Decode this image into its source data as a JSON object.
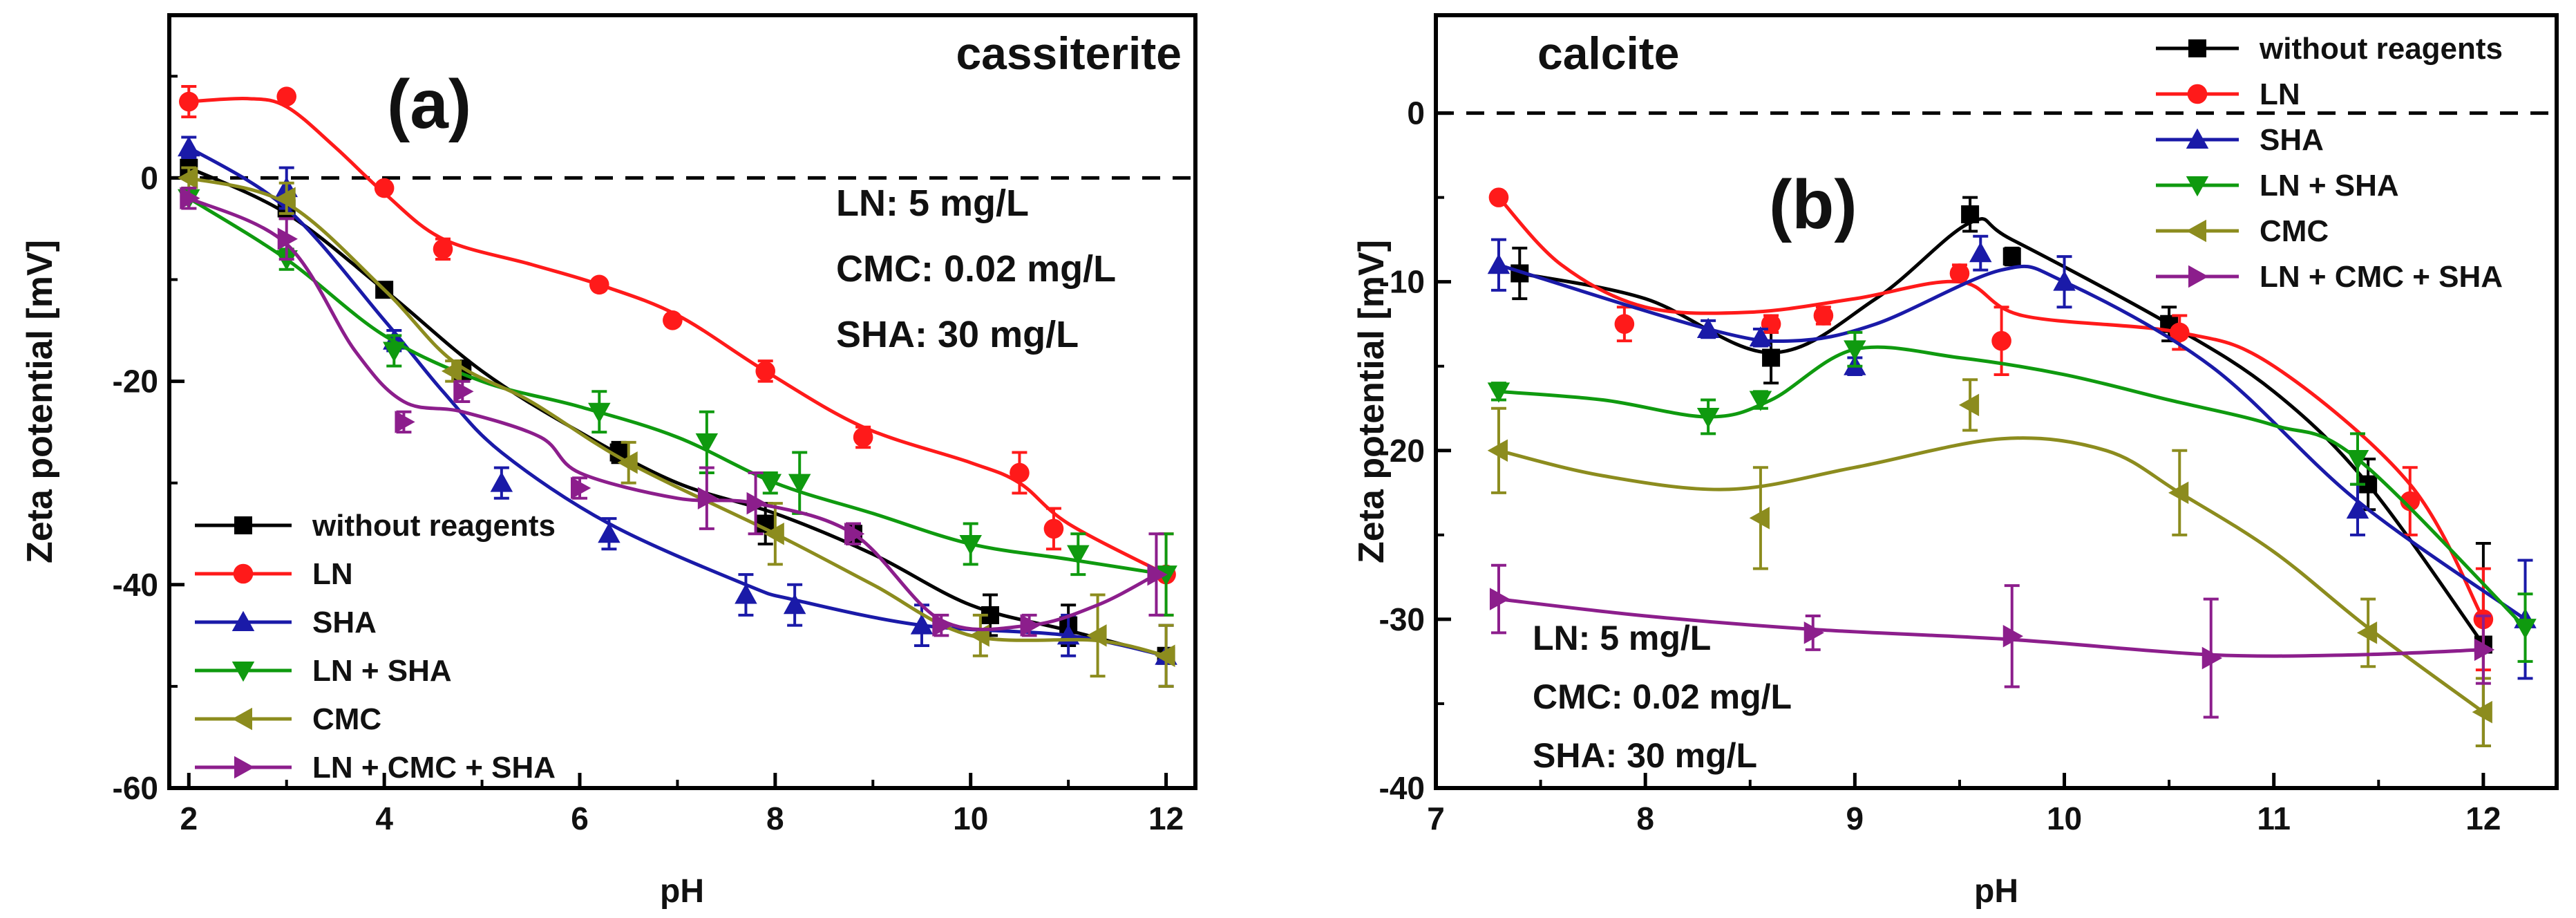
{
  "colors": {
    "without reagents": "#000000",
    "LN": "#ff1a1a",
    "SHA": "#1a1aa8",
    "LN + SHA": "#0f9a0f",
    "CMC": "#8c8c1e",
    "LN + CMC + SHA": "#8c1e8c"
  },
  "chart_data": [
    {
      "type": "line",
      "panel": "(a)",
      "title": "cassiterite",
      "xlabel": "pH",
      "ylabel": "Zeta potential [mV]",
      "xlim": [
        1.8,
        12.3
      ],
      "ylim": [
        -60,
        16
      ],
      "xticks": [
        2,
        4,
        6,
        8,
        10,
        12
      ],
      "yticks": [
        -60,
        -40,
        -20,
        0
      ],
      "minor_xticks": [
        3,
        5,
        7,
        9,
        11
      ],
      "minor_yticks": [
        -50,
        -30,
        -10,
        10
      ],
      "reference_line": 0,
      "annotations": [
        "LN: 5 mg/L",
        "CMC: 0.02 mg/L",
        "SHA: 30 mg/L"
      ],
      "legend_position": "bottom-left",
      "series": [
        {
          "name": "without reagents",
          "marker": "square",
          "x": [
            2,
            3,
            4,
            4.8,
            6.4,
            7.9,
            8.8,
            10.2,
            11.0,
            12.0
          ],
          "y": [
            1,
            -3,
            -11,
            -19,
            -27,
            -34,
            -35,
            -43,
            -44,
            -47
          ],
          "err": [
            1,
            1,
            0.6,
            1,
            1,
            2,
            1,
            2,
            2,
            3
          ],
          "curve": [
            [
              2,
              1
            ],
            [
              3,
              -3.5
            ],
            [
              4,
              -11
            ],
            [
              5,
              -19
            ],
            [
              6,
              -25
            ],
            [
              7,
              -30
            ],
            [
              8,
              -33
            ],
            [
              9,
              -37
            ],
            [
              10,
              -42
            ],
            [
              11,
              -44.5
            ],
            [
              12,
              -47
            ]
          ]
        },
        {
          "name": "LN",
          "marker": "circle",
          "x": [
            2,
            3,
            4,
            4.6,
            6.2,
            6.95,
            7.9,
            8.9,
            10.5,
            10.85,
            12.0
          ],
          "y": [
            7.5,
            8,
            -1,
            -7,
            -10.5,
            -14,
            -19,
            -25.5,
            -29,
            -34.5,
            -39
          ],
          "err": [
            1.5,
            0.5,
            0.5,
            1,
            0.5,
            0.5,
            1,
            1,
            2,
            2,
            4
          ],
          "curve": [
            [
              2,
              7.5
            ],
            [
              2.6,
              7.8
            ],
            [
              3,
              7
            ],
            [
              3.5,
              3
            ],
            [
              4,
              -1.5
            ],
            [
              4.6,
              -6
            ],
            [
              5.5,
              -8.5
            ],
            [
              6.2,
              -10.5
            ],
            [
              7,
              -13.5
            ],
            [
              7.9,
              -19
            ],
            [
              8.9,
              -24.5
            ],
            [
              10,
              -28
            ],
            [
              10.5,
              -30
            ],
            [
              11,
              -34
            ],
            [
              12,
              -39
            ]
          ]
        },
        {
          "name": "SHA",
          "marker": "triangle-up",
          "x": [
            2,
            3,
            4.1,
            5.2,
            6.3,
            7.7,
            8.2,
            9.5,
            11.0,
            12.0
          ],
          "y": [
            3,
            -1,
            -16,
            -30,
            -35,
            -41,
            -42,
            -44,
            -45,
            -47
          ],
          "err": [
            1,
            2,
            1,
            1.5,
            1.5,
            2,
            2,
            2,
            2,
            3
          ],
          "curve": [
            [
              2,
              3
            ],
            [
              3,
              -3
            ],
            [
              4,
              -14
            ],
            [
              4.6,
              -21
            ],
            [
              5.2,
              -27
            ],
            [
              6.3,
              -34
            ],
            [
              7.7,
              -40
            ],
            [
              8.2,
              -41.5
            ],
            [
              9.5,
              -44
            ],
            [
              11,
              -45
            ],
            [
              12,
              -47
            ]
          ]
        },
        {
          "name": "LN + SHA",
          "marker": "triangle-down",
          "x": [
            2,
            3,
            4.1,
            6.2,
            7.3,
            7.95,
            8.25,
            10.0,
            11.1,
            12.0
          ],
          "y": [
            -2,
            -8,
            -17,
            -23,
            -26,
            -30,
            -30,
            -36,
            -37,
            -39
          ],
          "err": [
            1,
            1,
            1.5,
            2,
            3,
            1,
            3,
            2,
            2,
            4
          ],
          "curve": [
            [
              2,
              -2
            ],
            [
              3,
              -8
            ],
            [
              4,
              -15.5
            ],
            [
              5,
              -20
            ],
            [
              6,
              -22.5
            ],
            [
              7,
              -25.5
            ],
            [
              8,
              -30
            ],
            [
              9,
              -33
            ],
            [
              10,
              -36
            ],
            [
              11,
              -37.5
            ],
            [
              12,
              -39
            ]
          ]
        },
        {
          "name": "CMC",
          "marker": "triangle-left",
          "x": [
            2,
            3,
            4.7,
            6.5,
            8.0,
            10.1,
            11.3,
            12.0
          ],
          "y": [
            0,
            -2,
            -19,
            -28,
            -35,
            -45,
            -45,
            -47
          ],
          "err": [
            1,
            1.5,
            1,
            2,
            3,
            2,
            4,
            3
          ],
          "curve": [
            [
              2,
              0
            ],
            [
              3,
              -2.5
            ],
            [
              4,
              -11
            ],
            [
              4.7,
              -18
            ],
            [
              5.5,
              -22
            ],
            [
              6.5,
              -28
            ],
            [
              8,
              -35
            ],
            [
              9,
              -40
            ],
            [
              10,
              -45
            ],
            [
              11.3,
              -45.5
            ],
            [
              12,
              -47
            ]
          ]
        },
        {
          "name": "LN + CMC + SHA",
          "marker": "triangle-right",
          "x": [
            2,
            3,
            4.2,
            4.8,
            6.0,
            7.3,
            7.8,
            8.8,
            9.7,
            10.6,
            11.9
          ],
          "y": [
            -2,
            -6,
            -24,
            -21,
            -30.5,
            -31.5,
            -32,
            -35,
            -44,
            -44,
            -39
          ],
          "err": [
            1,
            2,
            1,
            1,
            1,
            3,
            3,
            1,
            1,
            1,
            4
          ],
          "curve": [
            [
              2,
              -2
            ],
            [
              3,
              -6.5
            ],
            [
              3.7,
              -17
            ],
            [
              4.2,
              -22
            ],
            [
              4.8,
              -23
            ],
            [
              5.6,
              -25.5
            ],
            [
              6,
              -29
            ],
            [
              7,
              -31.5
            ],
            [
              7.8,
              -32
            ],
            [
              8.8,
              -35
            ],
            [
              9.7,
              -43.5
            ],
            [
              10.6,
              -44
            ],
            [
              11.3,
              -42
            ],
            [
              11.9,
              -39
            ]
          ]
        }
      ]
    },
    {
      "type": "line",
      "panel": "(b)",
      "title": "calcite",
      "xlabel": "pH",
      "ylabel": "Zeta potential [mV]",
      "xlim": [
        7,
        12.35
      ],
      "ylim": [
        -40,
        5.8
      ],
      "xticks": [
        7,
        8,
        9,
        10,
        11,
        12
      ],
      "yticks": [
        -40,
        -30,
        -20,
        -10,
        0
      ],
      "minor_xticks": [
        7.5,
        8.5,
        9.5,
        10.5,
        11.5
      ],
      "minor_yticks": [
        -35,
        -25,
        -15,
        -5
      ],
      "reference_line": 0,
      "annotations": [
        "LN: 5 mg/L",
        "CMC: 0.02 mg/L",
        "SHA: 30 mg/L"
      ],
      "legend_position": "top-right",
      "series": [
        {
          "name": "without reagents",
          "marker": "square",
          "x": [
            7.4,
            8.6,
            9.55,
            9.75,
            10.5,
            11.45,
            12.0
          ],
          "y": [
            -9.5,
            -14.5,
            -6,
            -8.5,
            -12.5,
            -22,
            -31.5
          ],
          "err": [
            1.5,
            1.5,
            1,
            0.5,
            1,
            1.5,
            6
          ],
          "curve": [
            [
              7.4,
              -9.5
            ],
            [
              8,
              -11
            ],
            [
              8.6,
              -14.2
            ],
            [
              9.1,
              -11
            ],
            [
              9.55,
              -6.5
            ],
            [
              9.75,
              -7.5
            ],
            [
              10.5,
              -12.5
            ],
            [
              11,
              -16.5
            ],
            [
              11.45,
              -22
            ],
            [
              12,
              -31.5
            ]
          ]
        },
        {
          "name": "LN",
          "marker": "circle",
          "x": [
            7.3,
            7.9,
            8.6,
            8.85,
            9.5,
            9.7,
            10.55,
            11.65,
            12.0
          ],
          "y": [
            -5,
            -12.5,
            -12.5,
            -12,
            -9.5,
            -13.5,
            -13,
            -23,
            -30
          ],
          "err": [
            0.3,
            1,
            0.5,
            0.5,
            0.5,
            2,
            1,
            2,
            3
          ],
          "curve": [
            [
              7.3,
              -5
            ],
            [
              7.6,
              -9
            ],
            [
              8,
              -11.5
            ],
            [
              8.5,
              -11.8
            ],
            [
              9,
              -11
            ],
            [
              9.5,
              -10
            ],
            [
              9.8,
              -12
            ],
            [
              10.55,
              -13
            ],
            [
              11,
              -15
            ],
            [
              11.65,
              -22
            ],
            [
              12,
              -30
            ]
          ]
        },
        {
          "name": "SHA",
          "marker": "triangle-up",
          "x": [
            7.3,
            8.3,
            8.55,
            9.0,
            9.6,
            10.0,
            11.4,
            12.2
          ],
          "y": [
            -9,
            -12.8,
            -13.3,
            -15,
            -8.3,
            -10,
            -23.5,
            -30
          ],
          "err": [
            1.5,
            0.5,
            0.5,
            0.5,
            1,
            1.5,
            1.5,
            3.5
          ],
          "curve": [
            [
              7.3,
              -9
            ],
            [
              8.3,
              -12.8
            ],
            [
              8.7,
              -13.5
            ],
            [
              9.1,
              -12.5
            ],
            [
              9.7,
              -9.3
            ],
            [
              10,
              -10
            ],
            [
              10.7,
              -15
            ],
            [
              11.4,
              -23
            ],
            [
              12.2,
              -30
            ]
          ]
        },
        {
          "name": "LN + SHA",
          "marker": "triangle-down",
          "x": [
            7.3,
            8.3,
            8.55,
            9.0,
            11.4,
            12.2
          ],
          "y": [
            -16.5,
            -18,
            -17,
            -14,
            -20.5,
            -30.5
          ],
          "err": [
            0.5,
            1,
            0.5,
            1,
            1.5,
            2
          ],
          "curve": [
            [
              7.3,
              -16.5
            ],
            [
              7.8,
              -17
            ],
            [
              8.3,
              -18
            ],
            [
              8.6,
              -17
            ],
            [
              9,
              -14
            ],
            [
              9.5,
              -14.5
            ],
            [
              10,
              -15.5
            ],
            [
              10.5,
              -17
            ],
            [
              11,
              -18.5
            ],
            [
              11.4,
              -20.5
            ],
            [
              12.2,
              -30.5
            ]
          ]
        },
        {
          "name": "CMC",
          "marker": "triangle-left",
          "x": [
            7.3,
            8.55,
            9.55,
            10.55,
            11.45,
            12.0
          ],
          "y": [
            -20,
            -24,
            -17.3,
            -22.5,
            -30.8,
            -35.5
          ],
          "err": [
            2.5,
            3,
            1.5,
            2.5,
            2,
            2
          ],
          "curve": [
            [
              7.3,
              -20
            ],
            [
              7.8,
              -21.5
            ],
            [
              8.4,
              -22.3
            ],
            [
              9,
              -21
            ],
            [
              9.7,
              -19.3
            ],
            [
              10.2,
              -20
            ],
            [
              10.55,
              -22.5
            ],
            [
              11,
              -26
            ],
            [
              11.45,
              -30.5
            ],
            [
              12,
              -35.5
            ]
          ]
        },
        {
          "name": "LN + CMC + SHA",
          "marker": "triangle-right",
          "x": [
            7.3,
            8.8,
            9.75,
            10.7,
            12.0
          ],
          "y": [
            -28.8,
            -30.8,
            -31,
            -32.3,
            -31.8
          ],
          "err": [
            2,
            1,
            3,
            3.5,
            2
          ],
          "curve": [
            [
              7.3,
              -28.8
            ],
            [
              8,
              -29.8
            ],
            [
              8.8,
              -30.6
            ],
            [
              9.75,
              -31.2
            ],
            [
              10.7,
              -32.1
            ],
            [
              11.4,
              -32.1
            ],
            [
              12,
              -31.8
            ]
          ]
        }
      ]
    }
  ]
}
